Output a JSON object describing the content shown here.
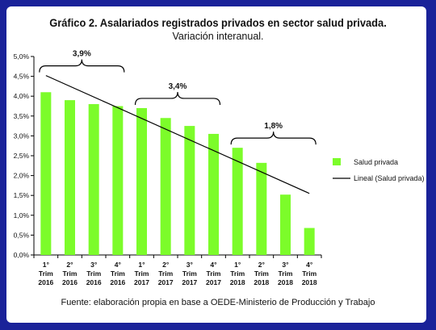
{
  "header": {
    "title": "Gráfico 2. Asalariados registrados privados en sector salud privada.",
    "subtitle": "Variación interanual."
  },
  "footer": {
    "source": "Fuente: elaboración propia en base a OEDE-Ministerio de Producción y Trabajo"
  },
  "colors": {
    "background": "#1a2299",
    "bar": "#7CFC2A",
    "trend": "#000000"
  },
  "chart_data": {
    "type": "bar",
    "categories": [
      [
        "1°",
        "Trim",
        "2016"
      ],
      [
        "2°",
        "Trim",
        "2016"
      ],
      [
        "3°",
        "Trim",
        "2016"
      ],
      [
        "4°",
        "Trim",
        "2016"
      ],
      [
        "1°",
        "Trim",
        "2017"
      ],
      [
        "2°",
        "Trim",
        "2017"
      ],
      [
        "3°",
        "Trim",
        "2017"
      ],
      [
        "4°",
        "Trim",
        "2017"
      ],
      [
        "1°",
        "Trim",
        "2018"
      ],
      [
        "2°",
        "Trim",
        "2018"
      ],
      [
        "3°",
        "Trim",
        "2018"
      ],
      [
        "4°",
        "Trim",
        "2018"
      ]
    ],
    "series": [
      {
        "name": "Salud privada",
        "values": [
          4.1,
          3.9,
          3.8,
          3.75,
          3.7,
          3.45,
          3.25,
          3.05,
          2.7,
          2.32,
          1.52,
          0.68
        ]
      }
    ],
    "trendline": {
      "name": "Lineal (Salud privada)",
      "start": 4.52,
      "end": 1.55
    },
    "annotations": [
      {
        "label": "3,9%",
        "from": 0,
        "to": 3
      },
      {
        "label": "3,4%",
        "from": 4,
        "to": 7
      },
      {
        "label": "1,8%",
        "from": 8,
        "to": 11
      }
    ],
    "yticks": [
      "0,0%",
      "0,5%",
      "1,0%",
      "1,5%",
      "2,0%",
      "2,5%",
      "3,0%",
      "3,5%",
      "4,0%",
      "4,5%",
      "5,0%"
    ],
    "ylim": [
      0,
      5
    ],
    "grid": false,
    "legend_position": "right"
  }
}
